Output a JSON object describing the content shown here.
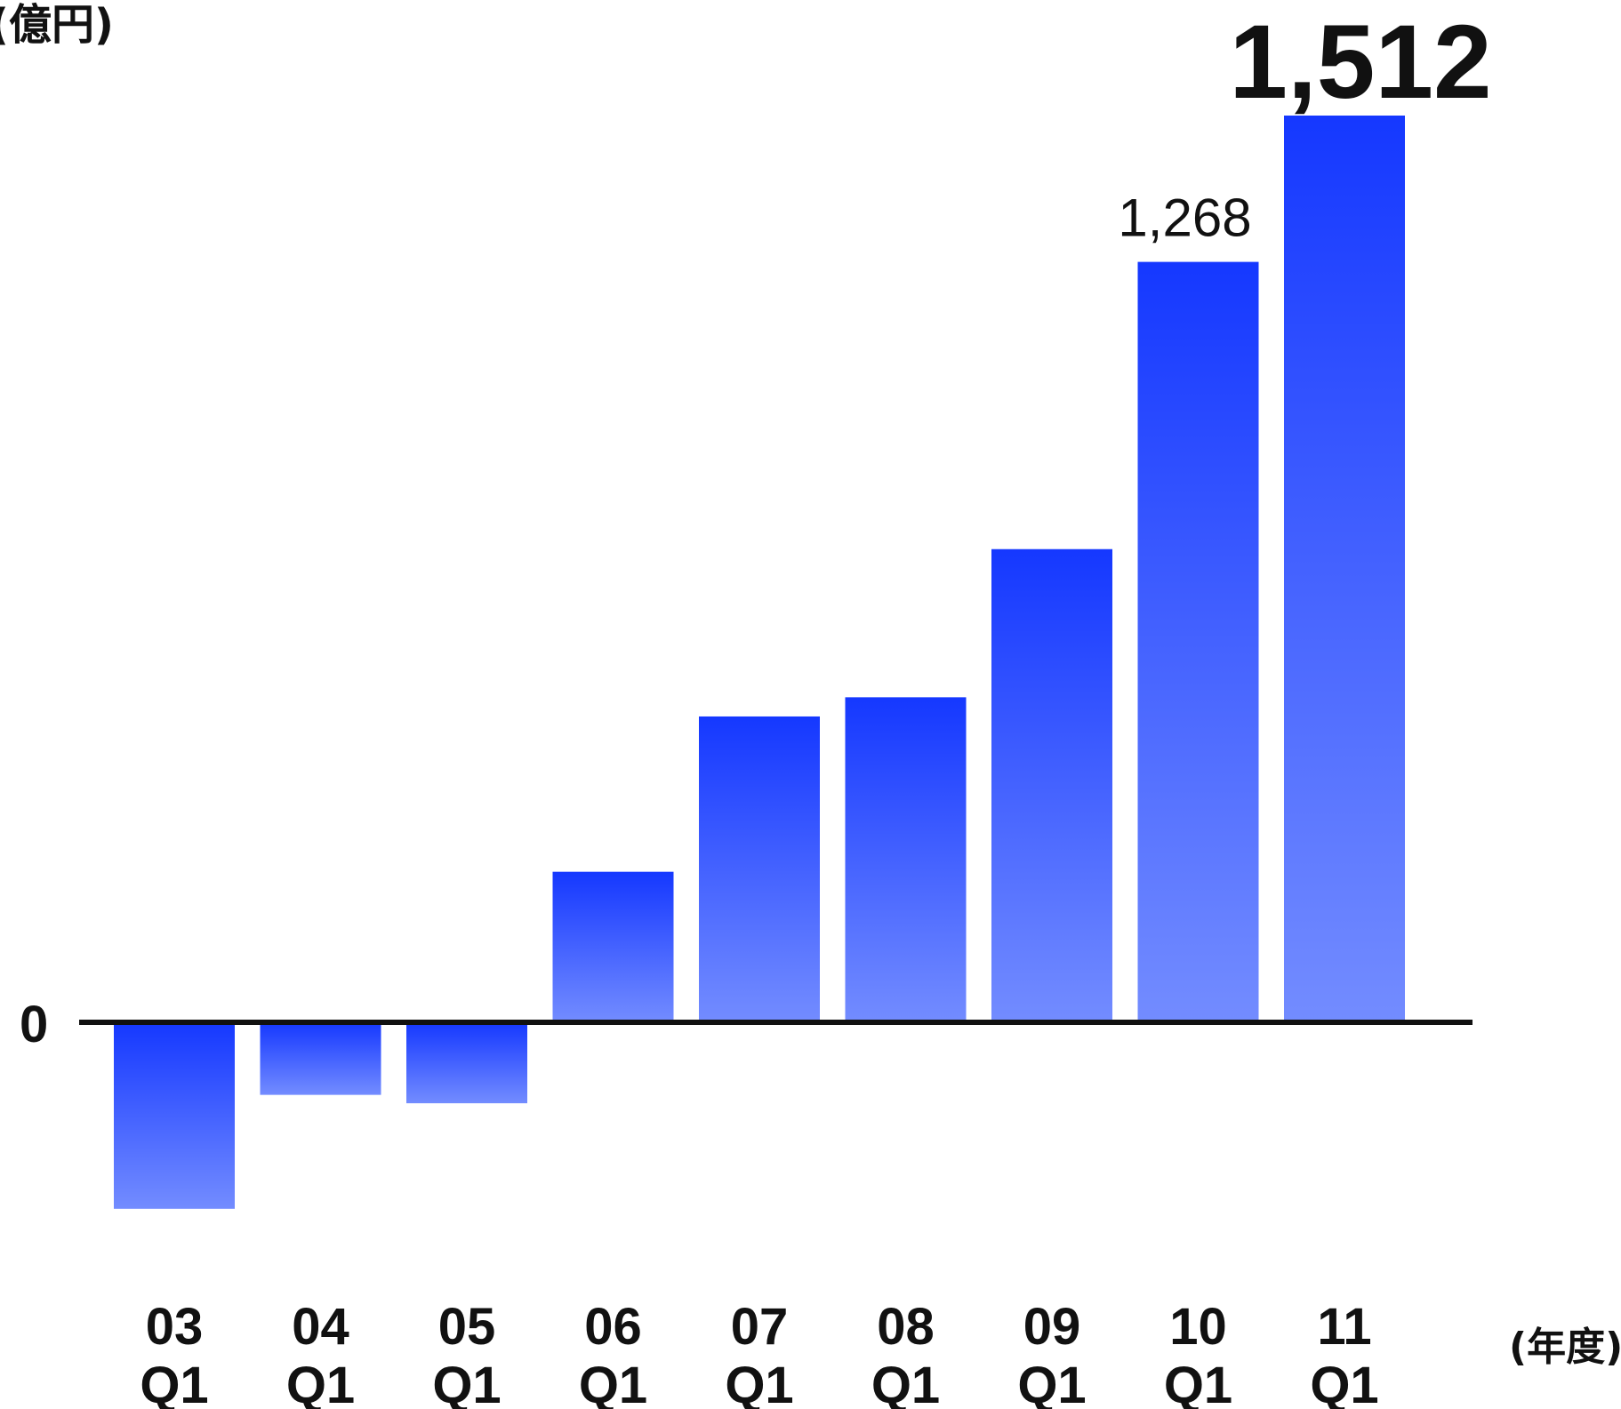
{
  "chart_data": {
    "type": "bar",
    "ylabel": "(億円)",
    "xlabel": "(年度)",
    "categories": [
      [
        "03",
        "Q1"
      ],
      [
        "04",
        "Q1"
      ],
      [
        "05",
        "Q1"
      ],
      [
        "06",
        "Q1"
      ],
      [
        "07",
        "Q1"
      ],
      [
        "08",
        "Q1"
      ],
      [
        "09",
        "Q1"
      ],
      [
        "10",
        "Q1"
      ],
      [
        "11",
        "Q1"
      ]
    ],
    "values": [
      -311,
      -121,
      -135,
      251,
      510,
      542,
      789,
      1268,
      1512
    ],
    "y_tick_labels": [
      "0"
    ],
    "data_labels": [
      {
        "index": 7,
        "text": "1,268",
        "highlight": false
      },
      {
        "index": 8,
        "text": "1,512",
        "highlight": true
      }
    ],
    "grid": false,
    "colors": {
      "bar_top": "#1538ff",
      "bar_bottom": "#738cff",
      "highlight_text": "#1538ff",
      "axis": "#111111"
    }
  }
}
